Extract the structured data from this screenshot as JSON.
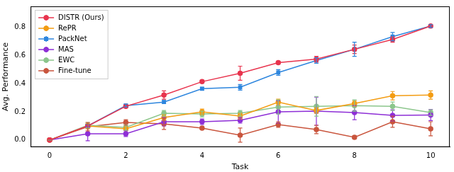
{
  "chart_data": {
    "type": "line",
    "x_label": "Task",
    "y_label": "Avg. Performance",
    "x": [
      0,
      1,
      2,
      3,
      4,
      5,
      6,
      7,
      8,
      9,
      10
    ],
    "xlim": [
      -0.5,
      10.5
    ],
    "xticks": [
      0,
      2,
      4,
      6,
      8,
      10
    ],
    "ylim": [
      -0.05,
      0.95
    ],
    "yticks": [
      {
        "value": 0,
        "label": "0.0"
      },
      0.2,
      0.4,
      0.6,
      0.8
    ],
    "grid": false,
    "legend": "upper left",
    "series": [
      {
        "name": "DISTR (Ours)",
        "color": "#e8344e",
        "marker": "circle",
        "values": [
          0,
          0.1,
          0.24,
          0.32,
          0.415,
          0.475,
          0.55,
          0.575,
          0.645,
          0.715,
          0.81
        ],
        "errors": [
          0,
          0.01,
          0.01,
          0.03,
          0.01,
          0.05,
          0.01,
          0.02,
          0.03,
          0.02,
          0.01
        ]
      },
      {
        "name": "RePR",
        "color": "#f39c12",
        "marker": "circle",
        "values": [
          0,
          0.1,
          0.08,
          0.16,
          0.2,
          0.17,
          0.27,
          0.21,
          0.26,
          0.315,
          0.32
        ],
        "errors": [
          0,
          0.02,
          0.01,
          0.02,
          0.02,
          0.02,
          0.02,
          0.02,
          0.02,
          0.03,
          0.03
        ]
      },
      {
        "name": "PackNet",
        "color": "#2e86de",
        "marker": "square",
        "values": [
          0,
          0.1,
          0.245,
          0.27,
          0.365,
          0.375,
          0.48,
          0.565,
          0.645,
          0.735,
          0.81
        ],
        "errors": [
          0,
          0.01,
          0.01,
          0.01,
          0.01,
          0.02,
          0.02,
          0.02,
          0.05,
          0.03,
          0.01
        ]
      },
      {
        "name": "MAS",
        "color": "#8e2fd6",
        "marker": "circle",
        "values": [
          0,
          0.045,
          0.045,
          0.13,
          0.13,
          0.14,
          0.2,
          0.205,
          0.195,
          0.175,
          0.178
        ],
        "errors": [
          0,
          0.05,
          0.02,
          0.03,
          0.02,
          0.02,
          0.08,
          0.1,
          0.05,
          0.04,
          0.04
        ]
      },
      {
        "name": "EWC",
        "color": "#8cc68c",
        "marker": "circle",
        "values": [
          0,
          0.105,
          0.09,
          0.19,
          0.185,
          0.19,
          0.235,
          0.24,
          0.245,
          0.24,
          0.195
        ],
        "errors": [
          0,
          0.02,
          0.02,
          0.02,
          0.02,
          0.02,
          0.05,
          0.07,
          0.04,
          0.03,
          0.02
        ]
      },
      {
        "name": "Fine-tune",
        "color": "#c9553d",
        "marker": "circle",
        "values": [
          0,
          0.095,
          0.125,
          0.115,
          0.085,
          0.035,
          0.11,
          0.075,
          0.02,
          0.13,
          0.08
        ],
        "errors": [
          0,
          0.03,
          0.02,
          0.04,
          0.01,
          0.05,
          0.02,
          0.03,
          0.01,
          0.04,
          0.05
        ]
      }
    ]
  }
}
